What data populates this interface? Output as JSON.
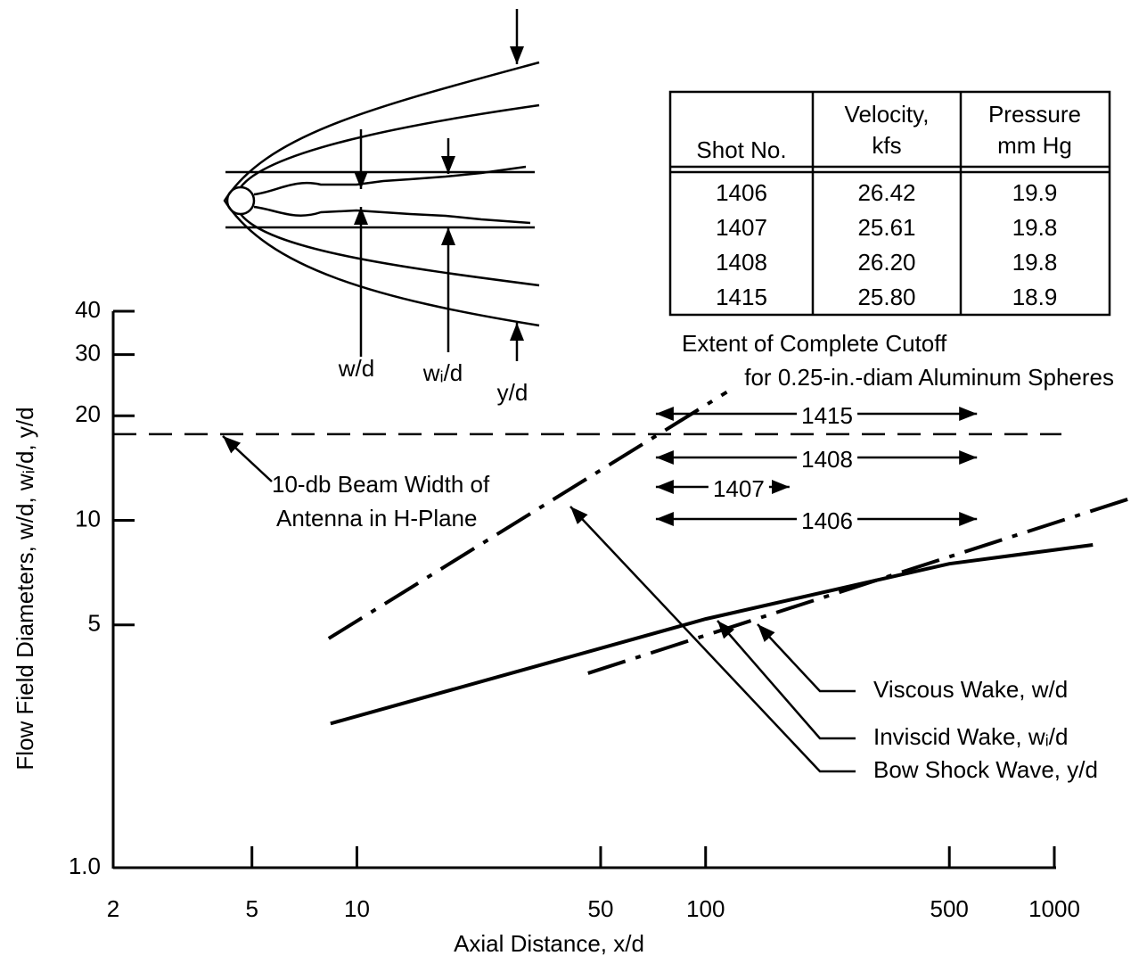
{
  "chart_data": {
    "type": "line",
    "xlabel": "Axial Distance, x/d",
    "ylabel": "Flow Field Diameters, w/d, wᵢ/d, y/d",
    "xscale": "log",
    "yscale": "log",
    "xlim": [
      2,
      1000
    ],
    "ylim": [
      1,
      40
    ],
    "xticks": [
      2,
      5,
      10,
      50,
      100,
      500,
      1000
    ],
    "yticks": [
      {
        "value": 1,
        "label": "1.0"
      },
      5,
      10,
      20,
      30,
      40
    ],
    "series": [
      {
        "name": "Viscous Wake, w/d",
        "color": "#000000",
        "style": "solid",
        "x": [
          8.4,
          100,
          500,
          1290
        ],
        "values": [
          2.6,
          5.2,
          7.5,
          8.5
        ]
      },
      {
        "name": "Inviscid Wake, wᵢ/d",
        "color": "#000000",
        "style": "dash-dot",
        "x": [
          46,
          1625
        ],
        "values": [
          3.63,
          11.5
        ]
      },
      {
        "name": "Bow Shock Wave, y/d",
        "color": "#000000",
        "style": "dash-dot",
        "x": [
          8.3,
          115
        ],
        "values": [
          4.57,
          23.4
        ]
      }
    ],
    "reference_line": {
      "lines": [
        "10-db Beam Width of",
        "Antenna in H-Plane"
      ],
      "value": 17.7
    },
    "cutoff_note": [
      "Extent of Complete Cutoff",
      "for 0.25-in.-diam Aluminum Spheres"
    ],
    "cutoff_ranges": [
      {
        "label": "1415",
        "x": [
          72,
          600
        ]
      },
      {
        "label": "1408",
        "x": [
          72,
          600
        ]
      },
      {
        "label": "1407",
        "x": [
          72,
          174
        ]
      },
      {
        "label": "1406",
        "x": [
          72,
          600
        ]
      }
    ]
  },
  "table": {
    "header": [
      [
        "Shot No."
      ],
      [
        "Velocity,",
        "kfs"
      ],
      [
        "Pressure",
        "mm Hg"
      ]
    ],
    "rows": [
      [
        "1406",
        "26.42",
        "19.9"
      ],
      [
        "1407",
        "25.61",
        "19.8"
      ],
      [
        "1408",
        "26.20",
        "19.8"
      ],
      [
        "1415",
        "25.80",
        "18.9"
      ]
    ]
  },
  "diagram": {
    "labels": [
      "w/d",
      "wᵢ/d",
      "y/d"
    ]
  }
}
